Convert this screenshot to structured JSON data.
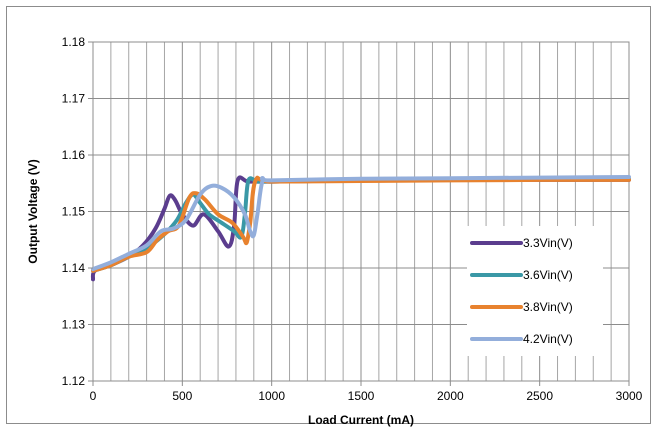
{
  "chart_data": {
    "type": "line",
    "title": "",
    "xlabel": "Load Current (mA)",
    "ylabel": "Output Voltage (V)",
    "xlim": [
      0,
      3000
    ],
    "ylim": [
      1.12,
      1.18
    ],
    "x_ticks": [
      "0",
      "500",
      "1000",
      "1500",
      "2000",
      "2500",
      "3000"
    ],
    "y_ticks": [
      "1.12",
      "1.13",
      "1.14",
      "1.15",
      "1.16",
      "1.17",
      "1.18"
    ],
    "grid": true,
    "legend_position": "right",
    "series": [
      {
        "name": "3.3Vin(V)",
        "color": "#5b3d8e",
        "points": [
          [
            0,
            1.138
          ],
          [
            10,
            1.1395
          ],
          [
            100,
            1.1405
          ],
          [
            200,
            1.142
          ],
          [
            280,
            1.144
          ],
          [
            350,
            1.147
          ],
          [
            400,
            1.1505
          ],
          [
            430,
            1.1528
          ],
          [
            460,
            1.152
          ],
          [
            500,
            1.1495
          ],
          [
            560,
            1.1475
          ],
          [
            620,
            1.1495
          ],
          [
            700,
            1.1465
          ],
          [
            760,
            1.1438
          ],
          [
            790,
            1.1475
          ],
          [
            810,
            1.1555
          ],
          [
            870,
            1.1553
          ],
          [
            1000,
            1.1553
          ],
          [
            1500,
            1.1555
          ],
          [
            2000,
            1.1556
          ],
          [
            2500,
            1.1556
          ],
          [
            3000,
            1.1556
          ]
        ]
      },
      {
        "name": "3.6Vin(V)",
        "color": "#3a98a6",
        "points": [
          [
            0,
            1.1395
          ],
          [
            100,
            1.1405
          ],
          [
            200,
            1.142
          ],
          [
            300,
            1.1435
          ],
          [
            400,
            1.146
          ],
          [
            470,
            1.1485
          ],
          [
            520,
            1.1515
          ],
          [
            560,
            1.153
          ],
          [
            600,
            1.1515
          ],
          [
            650,
            1.1495
          ],
          [
            720,
            1.148
          ],
          [
            790,
            1.1465
          ],
          [
            830,
            1.1455
          ],
          [
            850,
            1.1495
          ],
          [
            870,
            1.1555
          ],
          [
            920,
            1.1553
          ],
          [
            1000,
            1.1553
          ],
          [
            1500,
            1.1555
          ],
          [
            2000,
            1.1556
          ],
          [
            2500,
            1.1557
          ],
          [
            3000,
            1.1557
          ]
        ]
      },
      {
        "name": "3.8Vin(V)",
        "color": "#e8822e",
        "points": [
          [
            0,
            1.1395
          ],
          [
            100,
            1.1405
          ],
          [
            200,
            1.142
          ],
          [
            300,
            1.1428
          ],
          [
            360,
            1.145
          ],
          [
            420,
            1.1465
          ],
          [
            480,
            1.1475
          ],
          [
            540,
            1.1525
          ],
          [
            580,
            1.1532
          ],
          [
            630,
            1.152
          ],
          [
            700,
            1.1495
          ],
          [
            780,
            1.148
          ],
          [
            840,
            1.1455
          ],
          [
            860,
            1.1445
          ],
          [
            880,
            1.148
          ],
          [
            910,
            1.1555
          ],
          [
            1000,
            1.1553
          ],
          [
            1500,
            1.1554
          ],
          [
            2000,
            1.1555
          ],
          [
            2500,
            1.1556
          ],
          [
            3000,
            1.1556
          ]
        ]
      },
      {
        "name": "4.2Vin(V)",
        "color": "#93aedb",
        "points": [
          [
            0,
            1.1398
          ],
          [
            100,
            1.141
          ],
          [
            200,
            1.1425
          ],
          [
            300,
            1.144
          ],
          [
            380,
            1.1465
          ],
          [
            450,
            1.147
          ],
          [
            520,
            1.1485
          ],
          [
            600,
            1.153
          ],
          [
            660,
            1.1545
          ],
          [
            720,
            1.1542
          ],
          [
            790,
            1.1525
          ],
          [
            850,
            1.1495
          ],
          [
            880,
            1.1465
          ],
          [
            900,
            1.1458
          ],
          [
            920,
            1.1495
          ],
          [
            950,
            1.1555
          ],
          [
            1000,
            1.1555
          ],
          [
            1500,
            1.1558
          ],
          [
            2000,
            1.1559
          ],
          [
            2500,
            1.156
          ],
          [
            3000,
            1.1561
          ]
        ]
      }
    ]
  }
}
